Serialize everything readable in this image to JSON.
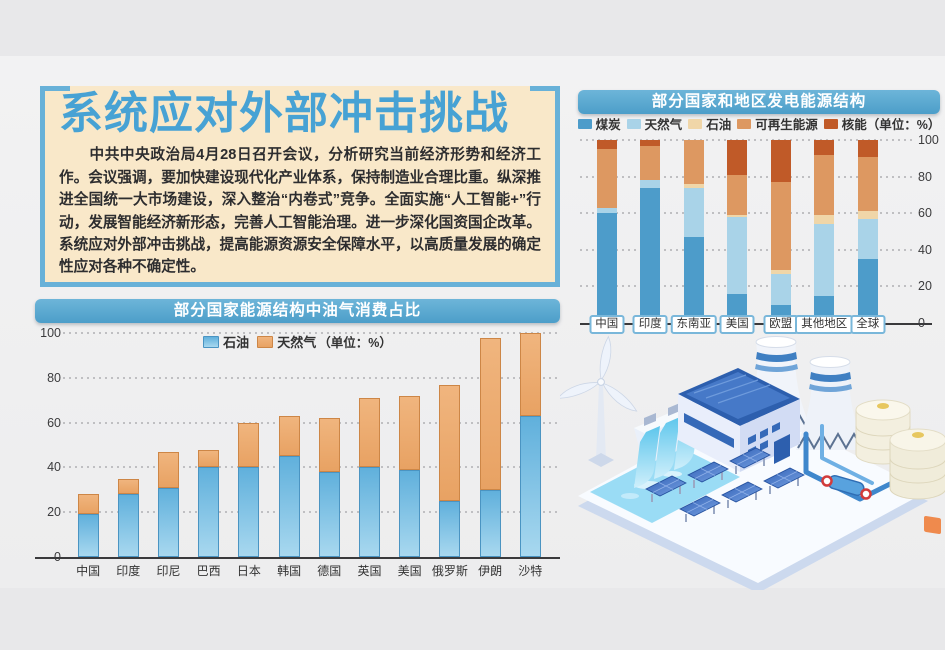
{
  "page": {
    "title": "系统应对外部冲击挑战",
    "paragraph": "　　中共中央政治局4月28日召开会议，分析研究当前经济形势和经济工作。会议强调，要加快建设现代化产业体系，保持制造业合理比重。纵深推进全国统一大市场建设，深入整治“内卷式”竞争。全面实施“人工智能+”行动，发展智能经济新形态，完善人工智能治理。进一步深化国资国企改革。系统应对外部冲击挑战，提高能源资源安全保障水平，以高质量发展的确定性应对各种不确定性。"
  },
  "colors": {
    "accent_blue": "#4c9ec9",
    "title_blue": "#47a2d4",
    "panel_cream": "#f9e8c9",
    "axis": "#3a3a3c"
  },
  "illustration": {
    "name": "power-plant-energy-scene",
    "elements": [
      "wind-turbine",
      "hydro-dam",
      "water-pool",
      "factory-building",
      "cooling-towers",
      "storage-tanks",
      "pipes",
      "solar-panels",
      "platform"
    ]
  },
  "chart_data": [
    {
      "id": "oil-gas",
      "type": "bar",
      "stacked": true,
      "title": "部分国家能源结构中油气消费占比",
      "unit_label": "（单位：%）",
      "grid": "dotted",
      "axis_side": "left",
      "ylim": [
        0,
        100
      ],
      "yticks": [
        0,
        20,
        40,
        60,
        80,
        100
      ],
      "categories": [
        "中国",
        "印度",
        "印尼",
        "巴西",
        "日本",
        "韩国",
        "德国",
        "英国",
        "美国",
        "俄罗斯",
        "伊朗",
        "沙特"
      ],
      "series": [
        {
          "name": "石油",
          "color": "#60b0dc",
          "color2": "#a8d8ef",
          "border": "#4a94c2",
          "values": [
            19,
            28,
            31,
            40,
            40,
            45,
            38,
            40,
            39,
            25,
            30,
            63
          ]
        },
        {
          "name": "天然气",
          "color": "#f0b57e",
          "color2": "#e8a263",
          "border": "#cd8646",
          "values": [
            9,
            7,
            16,
            8,
            20,
            18,
            24,
            31,
            33,
            52,
            68,
            37
          ]
        }
      ]
    },
    {
      "id": "power-mix",
      "type": "bar",
      "stacked": true,
      "title": "部分国家和地区发电能源结构",
      "unit_label": "（单位：%）",
      "grid": "dotted",
      "axis_side": "right",
      "ylim": [
        0,
        100
      ],
      "yticks": [
        0,
        20,
        40,
        60,
        80,
        100
      ],
      "categories": [
        "中国",
        "印度",
        "东南亚",
        "美国",
        "欧盟",
        "其他地区",
        "全球"
      ],
      "series": [
        {
          "name": "煤炭",
          "color": "#4d9cca",
          "values": [
            60,
            74,
            47,
            16,
            10,
            15,
            35
          ]
        },
        {
          "name": "天然气",
          "color": "#a9d3e8",
          "values": [
            3,
            4,
            27,
            42,
            17,
            39,
            22
          ]
        },
        {
          "name": "石油",
          "color": "#f0d6a8",
          "values": [
            0,
            0,
            2,
            1,
            2,
            5,
            4
          ]
        },
        {
          "name": "可再生能源",
          "color": "#dd9861",
          "values": [
            32,
            19,
            24,
            22,
            48,
            33,
            30
          ]
        },
        {
          "name": "核能",
          "color": "#c05a28",
          "values": [
            5,
            3,
            0,
            19,
            23,
            8,
            9
          ]
        }
      ]
    }
  ]
}
